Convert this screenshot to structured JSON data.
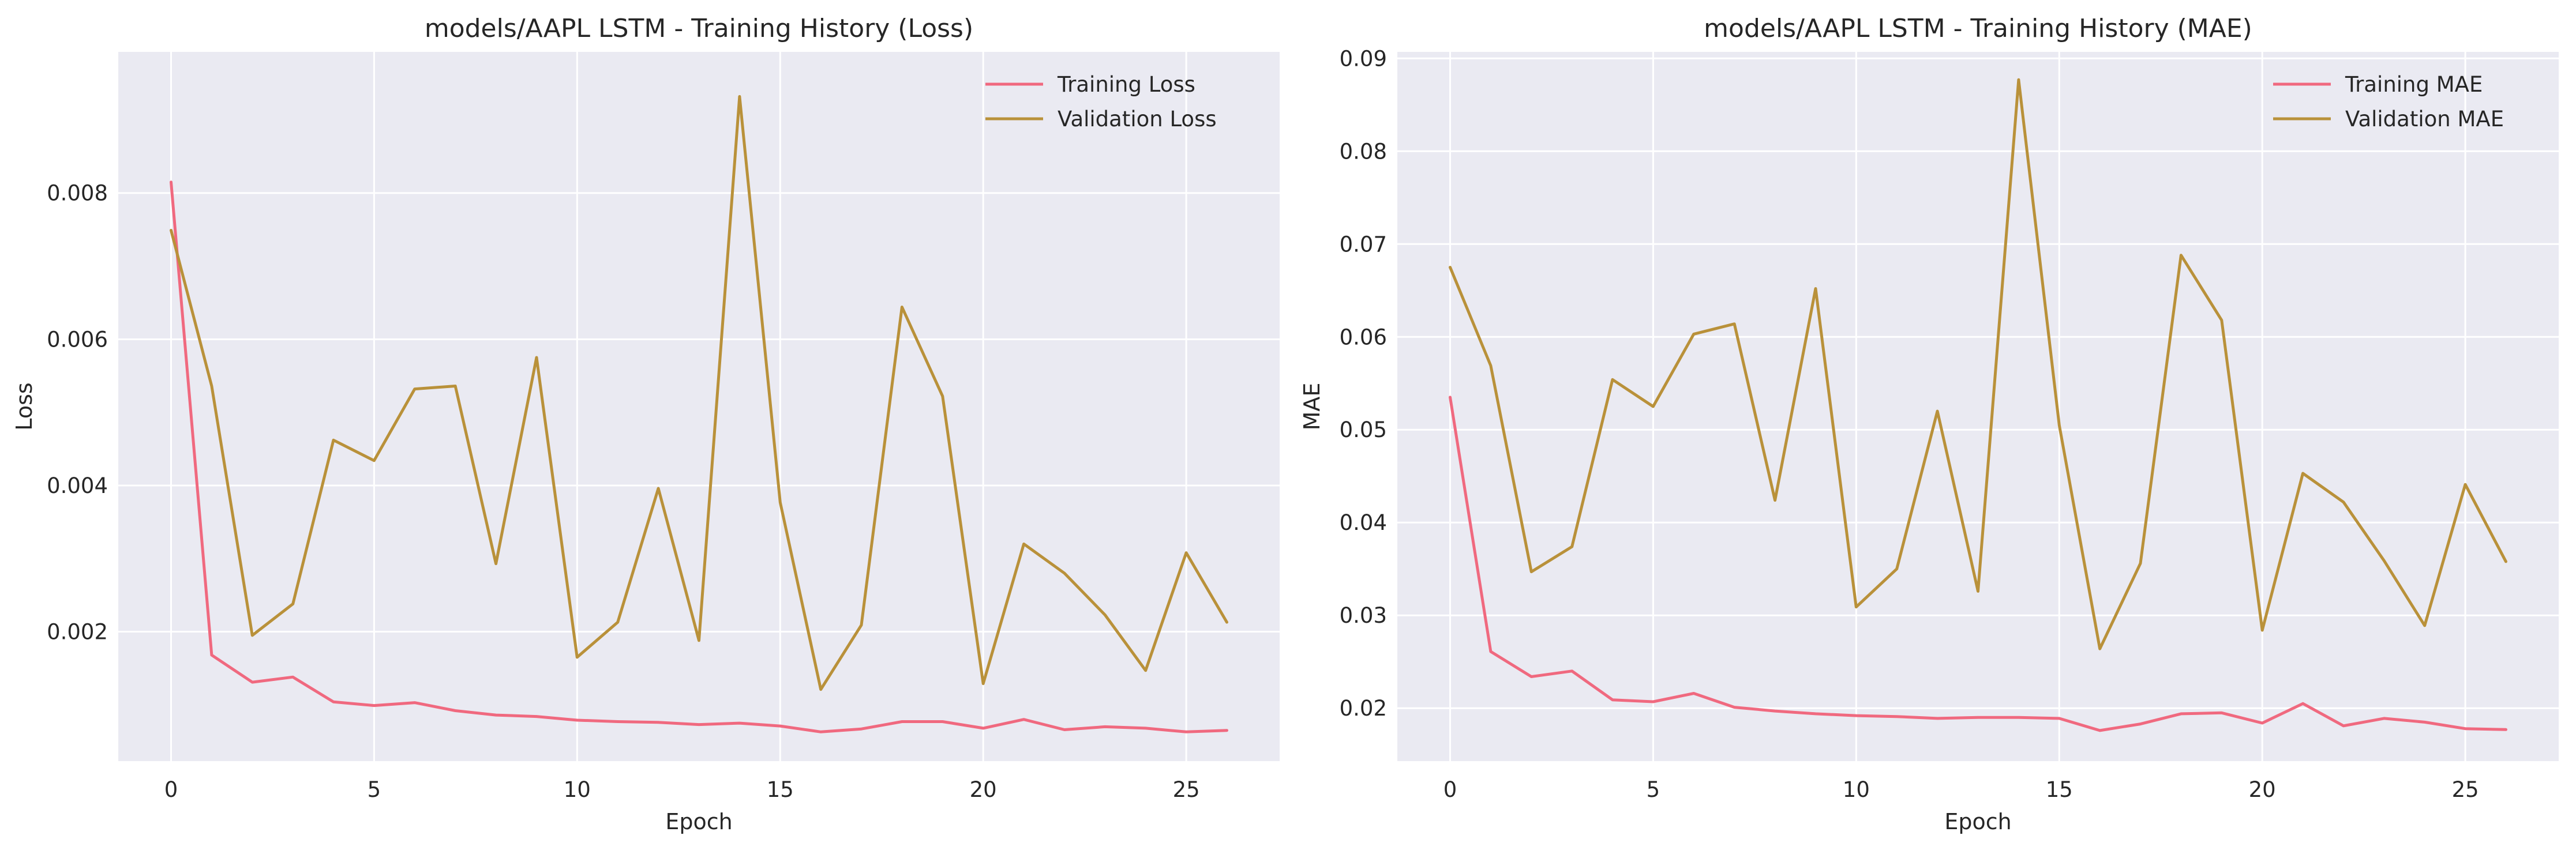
{
  "colors": {
    "background": "#eaeaf2",
    "grid": "#ffffff",
    "training": "#f0697f",
    "validation": "#b9913a"
  },
  "chart_data": [
    {
      "type": "line",
      "title": "models/AAPL LSTM - Training History (Loss)",
      "xlabel": "Epoch",
      "ylabel": "Loss",
      "xlim": [
        -1.3,
        27.3
      ],
      "ylim": [
        0.00023,
        0.00993
      ],
      "x_ticks": [
        0,
        5,
        10,
        15,
        20,
        25
      ],
      "y_ticks": [
        0.002,
        0.004,
        0.006,
        0.008
      ],
      "y_tick_labels": [
        "0.002",
        "0.004",
        "0.006",
        "0.008"
      ],
      "grid": true,
      "legend_position": "top-right",
      "x": [
        0,
        1,
        2,
        3,
        4,
        5,
        6,
        7,
        8,
        9,
        10,
        11,
        12,
        13,
        14,
        15,
        16,
        17,
        18,
        19,
        20,
        21,
        22,
        23,
        24,
        25,
        26
      ],
      "series": [
        {
          "name": "Training Loss",
          "color": "#f0697f",
          "values": [
            0.00815,
            0.00168,
            0.00131,
            0.00138,
            0.00104,
            0.00099,
            0.00103,
            0.00092,
            0.00086,
            0.00084,
            0.00079,
            0.00077,
            0.00076,
            0.00073,
            0.00075,
            0.00071,
            0.00063,
            0.00067,
            0.00077,
            0.00077,
            0.00068,
            0.0008,
            0.00066,
            0.0007,
            0.00068,
            0.00063,
            0.00065
          ]
        },
        {
          "name": "Validation Loss",
          "color": "#b9913a",
          "values": [
            0.00749,
            0.00536,
            0.00195,
            0.00238,
            0.00462,
            0.00434,
            0.00532,
            0.00536,
            0.00293,
            0.00575,
            0.00165,
            0.00213,
            0.00396,
            0.00188,
            0.00932,
            0.00377,
            0.00121,
            0.00209,
            0.00644,
            0.00522,
            0.00129,
            0.0032,
            0.0028,
            0.00223,
            0.00147,
            0.00308,
            0.00213
          ]
        }
      ]
    },
    {
      "type": "line",
      "title": "models/AAPL LSTM - Training History (MAE)",
      "xlabel": "Epoch",
      "ylabel": "MAE",
      "xlim": [
        -1.3,
        27.3
      ],
      "ylim": [
        0.0143,
        0.0907
      ],
      "x_ticks": [
        0,
        5,
        10,
        15,
        20,
        25
      ],
      "y_ticks": [
        0.02,
        0.03,
        0.04,
        0.05,
        0.06,
        0.07,
        0.08,
        0.09
      ],
      "y_tick_labels": [
        "0.02",
        "0.03",
        "0.04",
        "0.05",
        "0.06",
        "0.07",
        "0.08",
        "0.09"
      ],
      "grid": true,
      "legend_position": "top-right",
      "x": [
        0,
        1,
        2,
        3,
        4,
        5,
        6,
        7,
        8,
        9,
        10,
        11,
        12,
        13,
        14,
        15,
        16,
        17,
        18,
        19,
        20,
        21,
        22,
        23,
        24,
        25,
        26
      ],
      "series": [
        {
          "name": "Training MAE",
          "color": "#f0697f",
          "values": [
            0.0535,
            0.0261,
            0.0234,
            0.024,
            0.0209,
            0.0207,
            0.0216,
            0.0201,
            0.0197,
            0.0194,
            0.0192,
            0.0191,
            0.0189,
            0.019,
            0.019,
            0.0189,
            0.0176,
            0.0183,
            0.0194,
            0.0195,
            0.0184,
            0.0205,
            0.0181,
            0.0189,
            0.0185,
            0.0178,
            0.0177
          ]
        },
        {
          "name": "Validation MAE",
          "color": "#b9913a",
          "values": [
            0.0675,
            0.0569,
            0.0347,
            0.0374,
            0.0554,
            0.0525,
            0.0603,
            0.0614,
            0.0424,
            0.0652,
            0.0309,
            0.035,
            0.052,
            0.0326,
            0.0877,
            0.0505,
            0.0264,
            0.0356,
            0.0688,
            0.0618,
            0.0284,
            0.0453,
            0.0422,
            0.0359,
            0.0289,
            0.0441,
            0.0358
          ]
        }
      ]
    }
  ]
}
